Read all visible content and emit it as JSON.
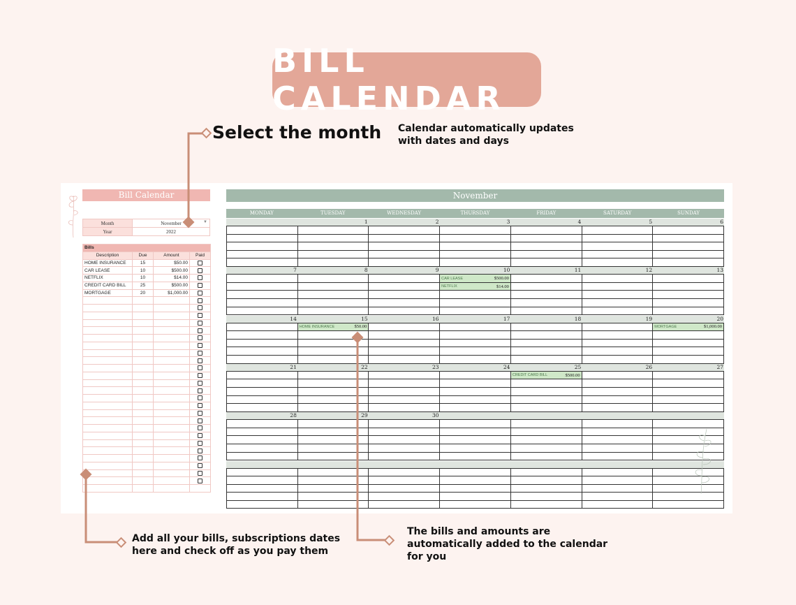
{
  "header": {
    "title": "BILL CALENDAR",
    "select_month": "Select the month",
    "note_top": "Calendar automatically updates with dates and days",
    "note_bottom_left": "Add all your bills, subscriptions dates here and check off as you pay them",
    "note_bottom_right": "The bills and amounts are automatically added to the calendar for you"
  },
  "sheet": {
    "panel_title": "Bill Calendar",
    "month_label": "Month",
    "month_value": "November",
    "year_label": "Year",
    "year_value": "2022",
    "bills_label": "Bills",
    "columns": {
      "description": "Description",
      "due": "Due",
      "amount": "Amount",
      "paid": "Paid"
    },
    "bills": [
      {
        "description": "HOME INSURANCE",
        "due": "15",
        "amount": "$50.00"
      },
      {
        "description": "CAR LEASE",
        "due": "10",
        "amount": "$500.00"
      },
      {
        "description": "NETFLIX",
        "due": "10",
        "amount": "$14.00"
      },
      {
        "description": "CREDIT CARD BILL",
        "due": "25",
        "amount": "$500.00"
      },
      {
        "description": "MORTGAGE",
        "due": "20",
        "amount": "$1,000.00"
      }
    ],
    "calendar": {
      "month": "November",
      "days": [
        "MONDAY",
        "TUESDAY",
        "WEDNESDAY",
        "THURSDAY",
        "FRIDAY",
        "SATURDAY",
        "SUNDAY"
      ],
      "weeks": [
        {
          "dates": [
            "",
            "1",
            "2",
            "3",
            "4",
            "5",
            "6"
          ]
        },
        {
          "dates": [
            "7",
            "8",
            "9",
            "10",
            "11",
            "12",
            "13"
          ]
        },
        {
          "dates": [
            "14",
            "15",
            "16",
            "17",
            "18",
            "19",
            "20"
          ]
        },
        {
          "dates": [
            "21",
            "22",
            "23",
            "24",
            "25",
            "26",
            "27"
          ]
        },
        {
          "dates": [
            "28",
            "29",
            "30",
            "",
            "",
            "",
            ""
          ]
        },
        {
          "dates": [
            "",
            "",
            "",
            "",
            "",
            "",
            ""
          ]
        }
      ],
      "entries": [
        {
          "week": 1,
          "day": 3,
          "line": 0,
          "name": "CAR LEASE",
          "amount": "$500.00"
        },
        {
          "week": 1,
          "day": 3,
          "line": 1,
          "name": "NETFLIX",
          "amount": "$14.00"
        },
        {
          "week": 2,
          "day": 1,
          "line": 0,
          "name": "HOME INSURANCE",
          "amount": "$50.00"
        },
        {
          "week": 2,
          "day": 6,
          "line": 0,
          "name": "MORTGAGE",
          "amount": "$1,000.00"
        },
        {
          "week": 3,
          "day": 4,
          "line": 0,
          "name": "CREDIT CARD BILL",
          "amount": "$500.00"
        }
      ]
    }
  },
  "colors": {
    "title_bg": "#e3a798",
    "pink": "#f0b7b2",
    "sage": "#a3b9ab",
    "entry_bg": "#cfe8c8",
    "connector": "#c98e77"
  }
}
